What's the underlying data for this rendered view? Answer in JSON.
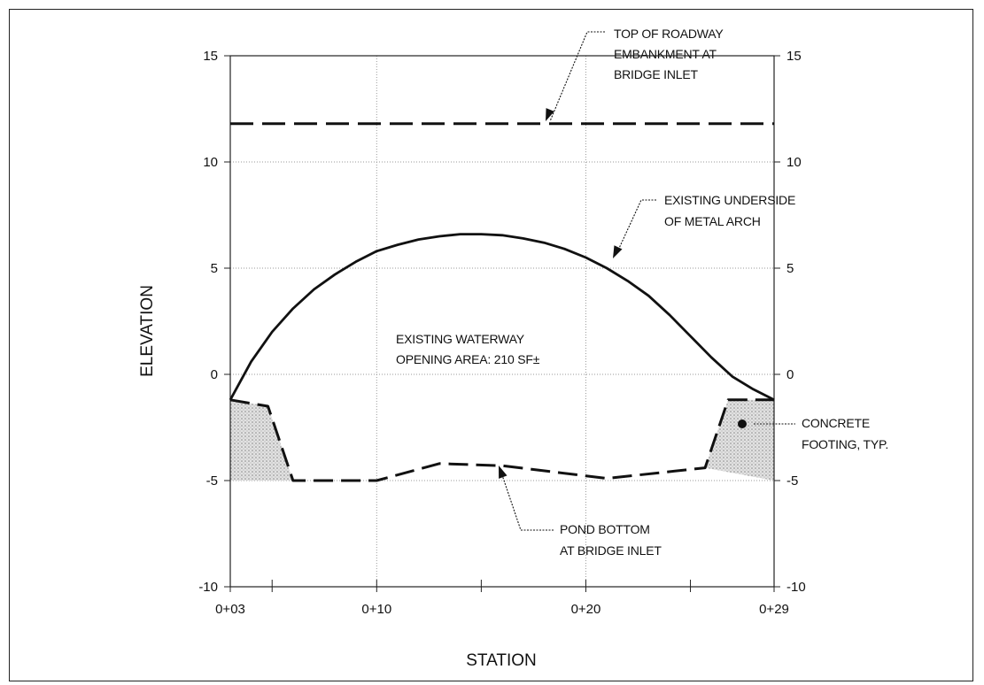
{
  "chart_data": {
    "type": "line",
    "xlabel": "STATION",
    "ylabel": "ELEVATION",
    "x_ticks": [
      {
        "value": 3,
        "label": "0+03"
      },
      {
        "value": 10,
        "label": "0+10"
      },
      {
        "value": 20,
        "label": "0+20"
      },
      {
        "value": 29,
        "label": "0+29"
      }
    ],
    "xlim": [
      3,
      29
    ],
    "ylim": [
      -10,
      15
    ],
    "y_ticks": [
      15,
      10,
      5,
      0,
      -5,
      -10
    ],
    "grid": true,
    "series": [
      {
        "key": "roadway",
        "style": "long-dash",
        "points": [
          [
            3,
            11.8
          ],
          [
            29,
            11.8
          ]
        ]
      },
      {
        "key": "arch",
        "style": "solid",
        "points": [
          [
            3,
            -1.2
          ],
          [
            4,
            0.6
          ],
          [
            5,
            2.0
          ],
          [
            6,
            3.1
          ],
          [
            7,
            4.0
          ],
          [
            8,
            4.7
          ],
          [
            9,
            5.3
          ],
          [
            10,
            5.8
          ],
          [
            11,
            6.1
          ],
          [
            12,
            6.35
          ],
          [
            13,
            6.5
          ],
          [
            14,
            6.6
          ],
          [
            15,
            6.6
          ],
          [
            16,
            6.55
          ],
          [
            17,
            6.4
          ],
          [
            18,
            6.2
          ],
          [
            19,
            5.9
          ],
          [
            20,
            5.5
          ],
          [
            21,
            5.0
          ],
          [
            22,
            4.4
          ],
          [
            23,
            3.7
          ],
          [
            24,
            2.8
          ],
          [
            25,
            1.8
          ],
          [
            26,
            0.8
          ],
          [
            27,
            -0.1
          ],
          [
            28,
            -0.7
          ],
          [
            29,
            -1.2
          ]
        ]
      },
      {
        "key": "pond_bottom",
        "style": "dashed",
        "points": [
          [
            3,
            -1.2
          ],
          [
            4.8,
            -1.5
          ],
          [
            6,
            -5.0
          ],
          [
            10,
            -5.0
          ],
          [
            13,
            -4.2
          ],
          [
            16,
            -4.3
          ],
          [
            21,
            -4.9
          ],
          [
            25.7,
            -4.4
          ],
          [
            26.8,
            -1.2
          ],
          [
            29,
            -1.2
          ]
        ]
      }
    ],
    "shaded_regions": [
      {
        "key": "footing_left",
        "points": [
          [
            3,
            -1.2
          ],
          [
            4.8,
            -1.5
          ],
          [
            6,
            -5.0
          ],
          [
            3,
            -5.0
          ]
        ]
      },
      {
        "key": "footing_right",
        "points": [
          [
            25.7,
            -4.4
          ],
          [
            26.8,
            -1.2
          ],
          [
            29,
            -1.2
          ],
          [
            29,
            -5.0
          ]
        ]
      }
    ],
    "annotations": [
      {
        "key": "roadway_label",
        "lines": [
          "TOP OF ROADWAY",
          "EMBANKMENT AT",
          "BRIDGE INLET"
        ]
      },
      {
        "key": "arch_label",
        "lines": [
          "EXISTING UNDERSIDE",
          "OF METAL ARCH"
        ]
      },
      {
        "key": "waterway_label",
        "lines": [
          "EXISTING WATERWAY",
          "OPENING AREA: 210 SF±"
        ]
      },
      {
        "key": "footing_label",
        "lines": [
          "CONCRETE",
          "FOOTING, TYP."
        ]
      },
      {
        "key": "pond_label",
        "lines": [
          "POND BOTTOM",
          "AT BRIDGE INLET"
        ]
      }
    ]
  }
}
